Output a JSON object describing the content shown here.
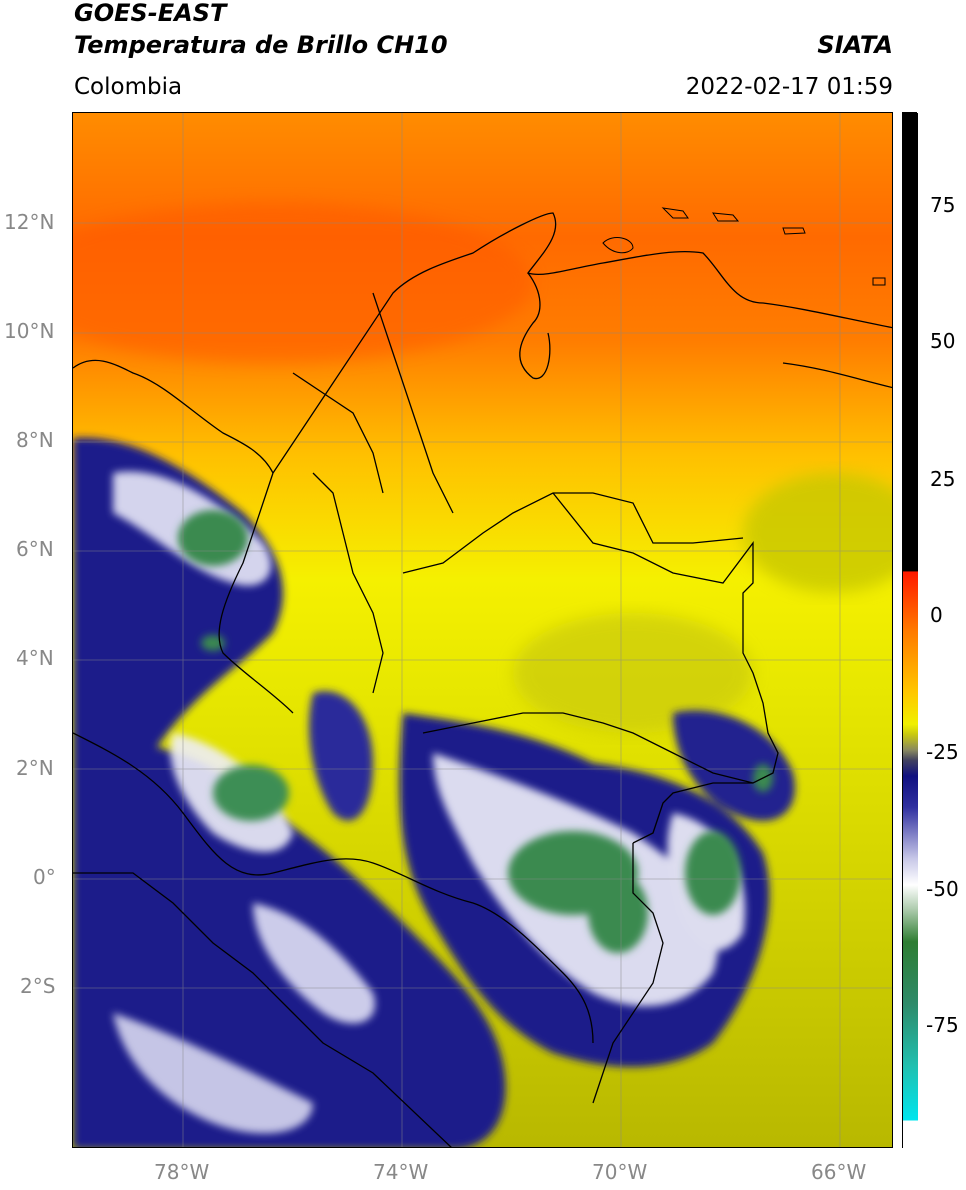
{
  "header": {
    "satellite": "GOES-EAST",
    "product": "Temperatura de Brillo CH10",
    "region": "Colombia",
    "agency": "SIATA",
    "datetime": "2022-02-17 01:59"
  },
  "map": {
    "lat_ticks": [
      "12°N",
      "10°N",
      "8°N",
      "6°N",
      "4°N",
      "2°N",
      "0°",
      "2°S"
    ],
    "lon_ticks": [
      "78°W",
      "74°W",
      "70°W",
      "66°W"
    ],
    "extent": {
      "lon_min": -80,
      "lon_max": -65,
      "lat_min": -5,
      "lat_max": 14
    },
    "gridlines": true
  },
  "colorbar": {
    "ticks": [
      "75",
      "50",
      "25",
      "0",
      "-25",
      "-50",
      "-75"
    ],
    "colors": {
      "top": "#000000",
      "warm": "#ff3300",
      "orange": "#ff9900",
      "yellow": "#f0f000",
      "olive": "#b3b300",
      "navy": "#101080",
      "white": "#ffffff",
      "green": "#2e8b57",
      "teal": "#20c0b0",
      "cyan": "#00e5ee"
    }
  }
}
